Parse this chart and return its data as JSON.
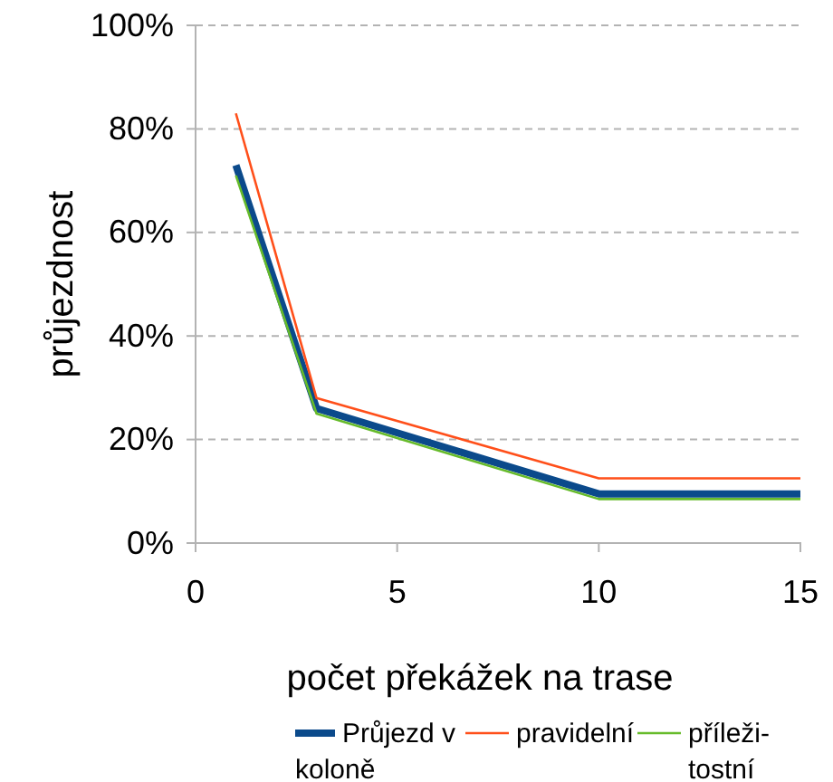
{
  "chart_data": {
    "type": "line",
    "xlabel": "počet překážek na trase",
    "ylabel": "průjezdnost",
    "xlim": [
      0,
      15
    ],
    "xticks": [
      0,
      5,
      10,
      15
    ],
    "ylim": [
      0,
      1
    ],
    "yticks": [
      {
        "value": 0,
        "label": "0%"
      },
      {
        "value": 0.2,
        "label": "20%"
      },
      {
        "value": 0.4,
        "label": "40%"
      },
      {
        "value": 0.6,
        "label": "60%"
      },
      {
        "value": 0.8,
        "label": "80%"
      },
      {
        "value": 1,
        "label": "100%"
      }
    ],
    "grid": "y",
    "legend": "bottom",
    "marker": "none",
    "line_style": "solid",
    "x": [
      1,
      3,
      10,
      15
    ],
    "series": [
      {
        "name": "Průjezd v koloně",
        "color": "#0b4a8b",
        "values": [
          0.73,
          0.26,
          0.095,
          0.095
        ]
      },
      {
        "name": "pravidelní",
        "color": "#ff4f1a",
        "values": [
          0.83,
          0.28,
          0.125,
          0.125
        ]
      },
      {
        "name": "příleži-tostní",
        "color": "#66bb2a",
        "values": [
          0.71,
          0.25,
          0.085,
          0.085
        ]
      }
    ]
  }
}
